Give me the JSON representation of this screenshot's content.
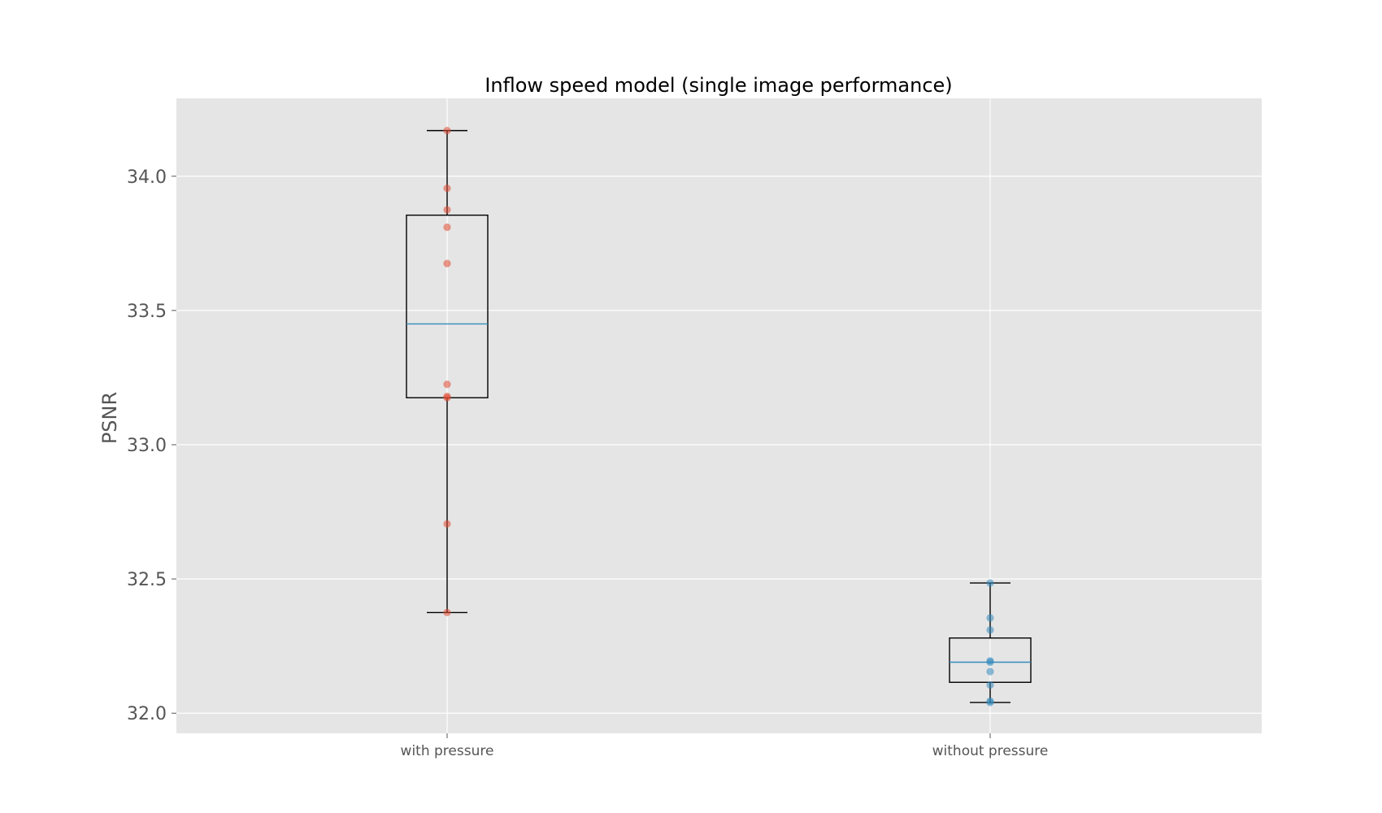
{
  "chart_data": {
    "type": "box",
    "title": "Inflow speed model (single image performance)",
    "xlabel": "",
    "ylabel": "PSNR",
    "ylim": [
      31.925,
      34.29
    ],
    "yticks": [
      32.0,
      32.5,
      33.0,
      33.5,
      34.0
    ],
    "ytick_labels": [
      "32.0",
      "32.5",
      "33.0",
      "33.5",
      "34.0"
    ],
    "grid": true,
    "categories": [
      "with pressure",
      "without pressure"
    ],
    "boxes": [
      {
        "category": "with pressure",
        "whisker_low": 32.375,
        "q1": 33.175,
        "median": 33.45,
        "q3": 33.855,
        "whisker_high": 34.17,
        "points": [
          34.17,
          33.955,
          33.875,
          33.81,
          33.675,
          33.225,
          33.18,
          33.175,
          32.705,
          32.375
        ],
        "point_color": "#e24a33"
      },
      {
        "category": "without pressure",
        "whisker_low": 32.04,
        "q1": 32.115,
        "median": 32.19,
        "q3": 32.28,
        "whisker_high": 32.485,
        "points": [
          32.485,
          32.355,
          32.31,
          32.195,
          32.19,
          32.155,
          32.105,
          32.045,
          32.04
        ],
        "point_color": "#348abd"
      }
    ],
    "colors": {
      "background": "#e5e5e5",
      "grid": "#ffffff",
      "box": "#000000",
      "median": "#348abd"
    }
  }
}
